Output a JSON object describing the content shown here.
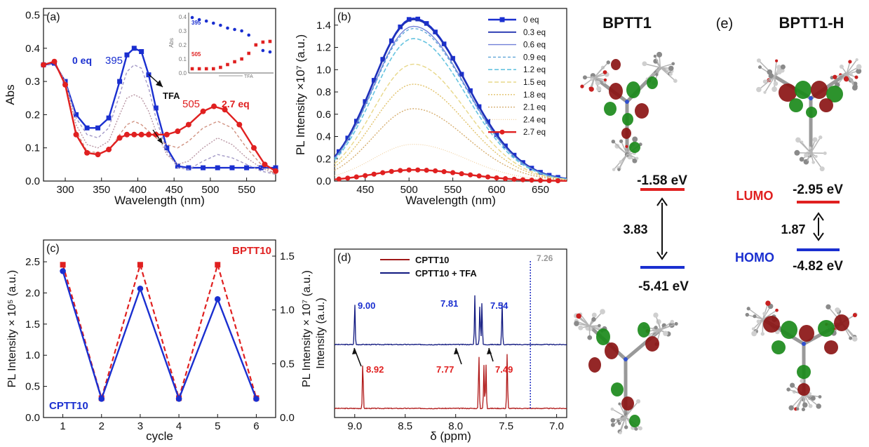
{
  "figure": {
    "colors": {
      "blue": "#1a2fd0",
      "red": "#e02020",
      "gray": "#777777"
    }
  },
  "chart_data": [
    {
      "panel": "(a)",
      "type": "line",
      "xlabel": "Wavelength (nm)",
      "ylabel": "Abs",
      "xlim": [
        270,
        590
      ],
      "ylim": [
        0,
        0.52
      ],
      "xticks": [
        300,
        350,
        400,
        450,
        500,
        550
      ],
      "yticks": [
        0.0,
        0.1,
        0.2,
        0.3,
        0.4,
        0.5
      ],
      "annotations": {
        "blue_eq": "0 eq",
        "blue_peak": "395",
        "red_peak": "505",
        "red_eq": "2.7 eq",
        "arrow_label": "TFA"
      },
      "series": [
        {
          "name": "0 eq",
          "x": [
            270,
            285,
            300,
            315,
            330,
            345,
            360,
            375,
            385,
            395,
            405,
            415,
            425,
            440,
            455,
            470,
            490,
            510,
            530,
            550,
            570,
            590
          ],
          "y": [
            0.35,
            0.355,
            0.3,
            0.2,
            0.16,
            0.16,
            0.19,
            0.3,
            0.38,
            0.4,
            0.39,
            0.32,
            0.22,
            0.1,
            0.045,
            0.04,
            0.04,
            0.04,
            0.04,
            0.04,
            0.04,
            0.04
          ]
        },
        {
          "name": "0.9 eq",
          "x": [
            270,
            285,
            300,
            315,
            330,
            345,
            360,
            375,
            385,
            395,
            405,
            415,
            425,
            440,
            455,
            470,
            490,
            510,
            530,
            550,
            570,
            590
          ],
          "y": [
            0.345,
            0.355,
            0.3,
            0.19,
            0.14,
            0.13,
            0.16,
            0.26,
            0.33,
            0.35,
            0.34,
            0.28,
            0.19,
            0.09,
            0.04,
            0.035,
            0.06,
            0.08,
            0.07,
            0.05,
            0.03,
            0.02
          ]
        },
        {
          "name": "1.5 eq",
          "x": [
            270,
            285,
            300,
            315,
            330,
            345,
            360,
            375,
            385,
            395,
            405,
            415,
            425,
            440,
            455,
            470,
            490,
            510,
            530,
            550,
            570,
            590
          ],
          "y": [
            0.35,
            0.36,
            0.3,
            0.17,
            0.11,
            0.1,
            0.12,
            0.2,
            0.25,
            0.26,
            0.25,
            0.21,
            0.15,
            0.08,
            0.05,
            0.06,
            0.1,
            0.13,
            0.11,
            0.07,
            0.04,
            0.02
          ]
        },
        {
          "name": "2.1 eq",
          "x": [
            270,
            285,
            300,
            315,
            330,
            345,
            360,
            375,
            385,
            395,
            405,
            415,
            425,
            440,
            455,
            470,
            490,
            510,
            530,
            550,
            570,
            590
          ],
          "y": [
            0.35,
            0.36,
            0.29,
            0.15,
            0.09,
            0.085,
            0.09,
            0.14,
            0.17,
            0.18,
            0.17,
            0.15,
            0.13,
            0.11,
            0.1,
            0.12,
            0.16,
            0.18,
            0.16,
            0.1,
            0.05,
            0.02
          ]
        },
        {
          "name": "2.7 eq",
          "x": [
            270,
            285,
            300,
            315,
            330,
            345,
            360,
            375,
            385,
            395,
            405,
            415,
            425,
            440,
            455,
            470,
            490,
            505,
            520,
            540,
            560,
            575,
            590
          ],
          "y": [
            0.35,
            0.36,
            0.29,
            0.14,
            0.085,
            0.08,
            0.095,
            0.13,
            0.14,
            0.14,
            0.14,
            0.14,
            0.14,
            0.14,
            0.15,
            0.17,
            0.21,
            0.225,
            0.215,
            0.17,
            0.1,
            0.05,
            0.03
          ]
        }
      ],
      "inset": {
        "ylabel": "Abs",
        "xlabel": "TFA",
        "label_blue": "395",
        "label_red": "505",
        "yticks": [
          0.0,
          0.1,
          0.2,
          0.3,
          0.4
        ],
        "blue": [
          0.395,
          0.38,
          0.37,
          0.355,
          0.34,
          0.32,
          0.31,
          0.3,
          0.27,
          0.2,
          0.16,
          0.15
        ],
        "red": [
          0.03,
          0.03,
          0.03,
          0.03,
          0.04,
          0.06,
          0.08,
          0.1,
          0.14,
          0.2,
          0.22,
          0.225
        ]
      }
    },
    {
      "panel": "(b)",
      "type": "line",
      "xlabel": "Wavelength (nm)",
      "ylabel": "PL Intensity ×10⁷ (a.u.)",
      "xlim": [
        415,
        680
      ],
      "ylim": [
        0,
        1.55
      ],
      "xticks": [
        450,
        500,
        550,
        600,
        650
      ],
      "yticks": [
        0.0,
        0.2,
        0.4,
        0.6,
        0.8,
        1.0,
        1.2,
        1.4
      ],
      "peak_x": 505,
      "series": [
        {
          "name": "0 eq",
          "peak": 1.46
        },
        {
          "name": "0.3 eq",
          "peak": 1.45
        },
        {
          "name": "0.6 eq",
          "peak": 1.39
        },
        {
          "name": "0.9 eq",
          "peak": 1.37
        },
        {
          "name": "1.2 eq",
          "peak": 1.28
        },
        {
          "name": "1.5 eq",
          "peak": 1.05
        },
        {
          "name": "1.8 eq",
          "peak": 0.87
        },
        {
          "name": "2.1 eq",
          "peak": 0.65
        },
        {
          "name": "2.4 eq",
          "peak": 0.33
        },
        {
          "name": "2.7 eq",
          "peak": 0.1
        }
      ]
    },
    {
      "panel": "(c)",
      "type": "line",
      "xlabel": "cycle",
      "ylabel_left": "PL Intensity × 10⁵ (a.u.)",
      "ylabel_right": "PL Intensity × 10⁷ (a.u.)",
      "label_left": "CPTT10",
      "label_right": "BPTT10",
      "x": [
        1,
        2,
        3,
        4,
        5,
        6
      ],
      "xlim": [
        0.5,
        6.5
      ],
      "ylim_left": [
        0,
        2.85
      ],
      "ylim_right": [
        0,
        1.65
      ],
      "yticks_left": [
        0.0,
        0.5,
        1.0,
        1.5,
        2.0,
        2.5
      ],
      "yticks_right": [
        0.0,
        0.5,
        1.0,
        1.5
      ],
      "series": [
        {
          "name": "CPTT10",
          "axis": "left",
          "values": [
            2.35,
            0.3,
            2.07,
            0.3,
            1.9,
            0.3
          ]
        },
        {
          "name": "BPTT10",
          "axis": "right",
          "values": [
            1.42,
            0.18,
            1.42,
            0.18,
            1.42,
            0.18
          ]
        }
      ]
    },
    {
      "panel": "(d)",
      "type": "line",
      "xlabel": "δ (ppm)",
      "ylabel": "Intensity (a.u.)",
      "xlim": [
        9.2,
        6.9
      ],
      "xticks": [
        9.0,
        8.5,
        8.0,
        7.5,
        7.0
      ],
      "series": [
        {
          "name": "CPTT10",
          "peaks": [
            8.92,
            7.77,
            7.72,
            7.7,
            7.49,
            7.26
          ]
        },
        {
          "name": "CPTT10 + TFA",
          "peaks": [
            9.0,
            7.81,
            7.76,
            7.74,
            7.54,
            7.26
          ]
        }
      ],
      "labels": {
        "blue": [
          "9.00",
          "7.81",
          "7.54"
        ],
        "red": [
          "8.92",
          "7.77",
          "7.49"
        ],
        "solvent": "7.26"
      }
    }
  ],
  "panel_e": {
    "label": "(e)",
    "left_title": "BPTT1",
    "right_title": "BPTT1-H",
    "lumo_label": "LUMO",
    "homo_label": "HOMO",
    "left_lumo": "-1.58 eV",
    "left_homo": "-5.41 eV",
    "left_gap": "3.83",
    "right_lumo": "-2.95 eV",
    "right_homo": "-4.82 eV",
    "right_gap": "1.87"
  }
}
